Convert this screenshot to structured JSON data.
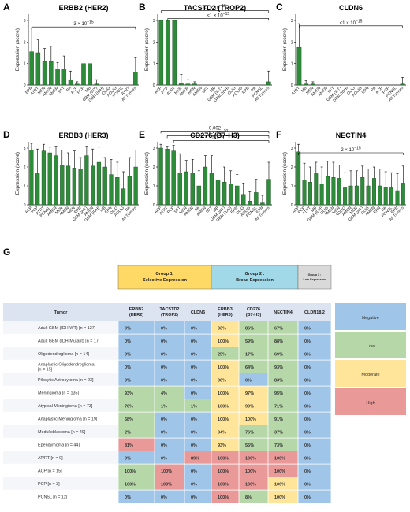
{
  "panel_labels": [
    "A",
    "B",
    "C",
    "D",
    "E",
    "F",
    "G"
  ],
  "colors": {
    "bar": "#2e8b3a",
    "negative": "#9fc5e8",
    "low": "#b6d7a8",
    "moderate": "#ffe599",
    "high": "#ea9999",
    "group1": "#ffd966",
    "group2": "#a2d9e8",
    "group3": "#d9d9d9",
    "header": "#dbe4f0"
  },
  "chart_data": [
    {
      "type": "bar",
      "panel": "A",
      "title": "ERBB2 (HER2)",
      "ylabel": "Expression (score)",
      "ylim": [
        0,
        3
      ],
      "yticks": [
        0,
        1,
        2,
        3
      ],
      "categories": [
        "EPN",
        "ATRT",
        "MEN",
        "AMEN",
        "AMEN",
        "SFT",
        "PA",
        "ACP",
        "PCP",
        "MB",
        "GBM (WT)",
        "GBM (IDH)",
        "OLIG",
        "AOLG",
        "PCNSL",
        "ATRT2",
        "All Tumors"
      ],
      "tick_labels": [
        "EPN",
        "ATRT",
        "MEN",
        "AMEN",
        "AMEN",
        "SFT",
        "PA",
        "ACP",
        "PCP",
        "MB",
        "GBM (WT)",
        "GBM (IDH)",
        "OLIG",
        "AOLIG",
        "PCNSL",
        "ATRT",
        "All Tumors"
      ],
      "values": [
        1.55,
        1.5,
        1.1,
        1.1,
        0.75,
        0.75,
        0.25,
        0.05,
        1.0,
        1.0,
        0.05,
        0,
        0,
        0,
        0,
        0,
        0.6
      ],
      "errors": [
        1.1,
        0.6,
        0.6,
        0.7,
        0.3,
        0.6,
        0.4,
        0.1,
        0,
        0,
        0.2,
        0,
        0,
        0,
        0,
        0,
        0.7
      ],
      "annotations": [
        {
          "text": "3 × 10",
          "exp": "−15",
          "from": 0,
          "to": 16,
          "y": 2.7
        }
      ]
    },
    {
      "type": "bar",
      "panel": "B",
      "title": "TACSTD2 (TROP2)",
      "ylabel": "Expression (score)",
      "ylim": [
        0,
        3
      ],
      "yticks": [
        0,
        1,
        2,
        3
      ],
      "categories": [
        "ACP",
        "PCP",
        "ATRT",
        "MEN",
        "AMEN",
        "MEN2",
        "MEN3",
        "SFT",
        "MB",
        "GBM (WT)",
        "GBM (IDH)",
        "OLIG",
        "AOLG",
        "EPN",
        "PA",
        "PCNSL",
        "All Tumors"
      ],
      "tick_labels": [
        "ACP",
        "PCP",
        "ATRT",
        "MEN",
        "AMEN",
        "MEN",
        "AMEN",
        "SFT",
        "MB",
        "GBM (WT)",
        "GBM (IDH)",
        "OLIG",
        "AOLIG",
        "EPN",
        "PA",
        "PCNSL",
        "All Tumors"
      ],
      "values": [
        3.0,
        3.0,
        3.0,
        0.1,
        0.05,
        0.05,
        0,
        0,
        0,
        0,
        0,
        0,
        0,
        0,
        0,
        0,
        0.15
      ],
      "errors": [
        0,
        0,
        0,
        0.4,
        0.2,
        0.1,
        0,
        0,
        0,
        0,
        0,
        0,
        0,
        0,
        0,
        0,
        0.5
      ],
      "annotations": [
        {
          "text": "<1 × 10",
          "exp": "−15",
          "from": 0,
          "to": 16,
          "y": 3.45
        },
        {
          "text": "<1 × 10",
          "exp": "−15",
          "from": 1,
          "to": 16,
          "y": 3.1
        }
      ]
    },
    {
      "type": "bar",
      "panel": "C",
      "title": "CLDN6",
      "ylabel": "Expression (score)",
      "ylim": [
        0,
        3
      ],
      "yticks": [
        0,
        1,
        2,
        3
      ],
      "categories": [
        "ATRT",
        "MB",
        "MEN",
        "AMEN",
        "AMEN2",
        "SFT",
        "GBM (WT)",
        "GBM (IDH)",
        "OLIG",
        "AOLG",
        "EPN",
        "PA",
        "ACP",
        "PCP",
        "PCNSL",
        "All Tumors"
      ],
      "tick_labels": [
        "ATRT",
        "MB",
        "MEN",
        "AMEN",
        "AMEN",
        "SFT",
        "GBM (WT)",
        "GBM (IDH)",
        "OLIG",
        "AOLIG",
        "EPN",
        "PA",
        "ACP",
        "PCP",
        "PCNSL",
        "All Tumors"
      ],
      "values": [
        1.75,
        0.05,
        0.05,
        0,
        0,
        0,
        0,
        0,
        0,
        0,
        0,
        0,
        0,
        0,
        0,
        0.05
      ],
      "errors": [
        1.1,
        0.15,
        0.1,
        0,
        0,
        0,
        0,
        0,
        0,
        0,
        0,
        0,
        0,
        0,
        0,
        0.3
      ],
      "annotations": [
        {
          "text": "<1 × 10",
          "exp": "−15",
          "from": 0,
          "to": 15,
          "y": 2.75
        }
      ]
    },
    {
      "type": "bar",
      "panel": "D",
      "title": "ERBB3 (HER3)",
      "ylabel": "Expression (score)",
      "ylim": [
        0,
        3
      ],
      "yticks": [
        0,
        1,
        2,
        3
      ],
      "categories": [
        "ACP",
        "PCP",
        "ATRT",
        "PCNSL",
        "AMEN",
        "MEN",
        "AMEN2",
        "MEN2",
        "EPN",
        "GBM (WT)",
        "AMEN3",
        "GBM (IDH)",
        "MB",
        "EPN2",
        "OLIG",
        "AOLG",
        "PA",
        "All Tumors"
      ],
      "tick_labels": [
        "ACP",
        "PCP",
        "ATRT",
        "PCNSL",
        "AMEN",
        "MEN",
        "AMEN",
        "MEN",
        "EPN",
        "GBM (WT)",
        "AMEN",
        "GBM (IDH)",
        "MB",
        "EPN",
        "OLIG",
        "AOLIG",
        "PA",
        "All Tumors"
      ],
      "values": [
        2.9,
        1.65,
        2.85,
        2.75,
        2.6,
        2.1,
        2.05,
        1.95,
        1.9,
        2.6,
        2.05,
        2.25,
        2.0,
        1.6,
        1.45,
        0.85,
        1.5,
        2.0
      ],
      "errors": [
        0.35,
        1.3,
        0.35,
        0.3,
        0.5,
        0.8,
        0.7,
        0.9,
        0.6,
        0.5,
        0.9,
        0.8,
        0.5,
        0.8,
        0.8,
        0.9,
        1.0,
        0.9
      ]
    },
    {
      "type": "bar",
      "panel": "E",
      "title": "CD276 (B7-H3)",
      "ylabel": "Expression (score)",
      "ylim": [
        0,
        3
      ],
      "yticks": [
        0,
        1,
        2,
        3
      ],
      "categories": [
        "ACP",
        "ATRT",
        "PCP",
        "SFT",
        "MEN",
        "AMEN",
        "PA",
        "AMEN2",
        "SFT2",
        "MB",
        "GBM (WT)",
        "GBM (IDH)",
        "EPN",
        "OLIG",
        "AOLG",
        "PCNSL",
        "EPN2",
        "All Tumors"
      ],
      "tick_labels": [
        "ACP",
        "ATRT",
        "PCP",
        "SFT",
        "MEN",
        "AMEN",
        "PA",
        "AMEN",
        "SFT",
        "MB",
        "GBM (WT)",
        "GBM (IDH)",
        "EPN",
        "OLIG",
        "AOLIG",
        "PCNSL",
        "EPN",
        "All Tumors"
      ],
      "values": [
        3.0,
        2.95,
        2.85,
        1.7,
        1.75,
        1.7,
        1.0,
        2.0,
        1.7,
        1.3,
        1.2,
        1.1,
        1.0,
        0.55,
        0.2,
        0.65,
        0.1,
        1.35
      ],
      "errors": [
        0.2,
        0.15,
        0.3,
        1.0,
        0.6,
        0.7,
        0.8,
        0.6,
        0.9,
        0.8,
        0.8,
        0.7,
        0.6,
        0.6,
        0.5,
        0.7,
        0.4,
        0.9
      ],
      "annotations": [
        {
          "text": "0.002",
          "exp": "",
          "from": 0,
          "to": 17,
          "y": 3.9
        },
        {
          "text": "1 × 10",
          "exp": "−10",
          "from": 1,
          "to": 17,
          "y": 3.65
        },
        {
          "text": "5 × 10",
          "exp": "−4",
          "from": 2,
          "to": 17,
          "y": 3.4
        }
      ]
    },
    {
      "type": "bar",
      "panel": "F",
      "title": "NECTIN4",
      "ylabel": "Expression (score)",
      "ylim": [
        0,
        3
      ],
      "yticks": [
        0,
        1,
        2,
        3
      ],
      "categories": [
        "ACP",
        "PCP",
        "ATRT",
        "MB",
        "GBM (IDH)",
        "OLIG",
        "AMEN",
        "MEN",
        "AOLG",
        "AMEN2",
        "MEN2",
        "GBM (WT)",
        "OLIG2",
        "AMEN3",
        "EPN",
        "PA",
        "PCNSL",
        "EPN2",
        "All Tumors"
      ],
      "tick_labels": [
        "ACP",
        "PCP",
        "ATRT",
        "MB",
        "GBM (IDH)",
        "OLIG",
        "AMEN",
        "MEN",
        "AOLIG",
        "AMEN",
        "MEN",
        "GBM (WT)",
        "OLIG",
        "AMEN",
        "EPN",
        "PA",
        "PCNSL",
        "EPN",
        "All Tumors"
      ],
      "values": [
        2.8,
        1.3,
        1.2,
        1.65,
        1.1,
        1.5,
        1.45,
        1.4,
        0.9,
        1.0,
        1.0,
        1.45,
        1.0,
        1.4,
        1.0,
        0.95,
        0.9,
        0.75,
        1.15
      ],
      "errors": [
        0.4,
        0.9,
        0.8,
        0.6,
        0.9,
        0.8,
        0.8,
        0.7,
        0.8,
        0.8,
        0.8,
        0.6,
        0.9,
        0.6,
        0.9,
        0.8,
        0.8,
        0.9,
        0.9
      ],
      "annotations": [
        {
          "text": "2 × 10",
          "exp": "−15",
          "from": 0,
          "to": 18,
          "y": 2.75
        }
      ]
    }
  ],
  "table": {
    "groups": [
      {
        "line1": "Group 1:",
        "line2": "Selective Expression",
        "color": "#ffd966"
      },
      {
        "line1": "Group 2 :",
        "line2": "Broad Expression",
        "color": "#a2d9e8"
      },
      {
        "line1": "Group 3 :",
        "line2": "Low Expression",
        "color": "#d9d9d9"
      }
    ],
    "headers": [
      {
        "l1": "Tumor",
        "l2": ""
      },
      {
        "l1": "ERBB2",
        "l2": "(HER2)"
      },
      {
        "l1": "TACSTD2",
        "l2": "(TROP2)"
      },
      {
        "l1": "CLDN6",
        "l2": ""
      },
      {
        "l1": "ERBB3",
        "l2": "(HER3)"
      },
      {
        "l1": "CD276",
        "l2": "(B7-H3)"
      },
      {
        "l1": "NECTIN4",
        "l2": ""
      },
      {
        "l1": "CLDN18.2",
        "l2": ""
      }
    ],
    "rows": [
      {
        "label": [
          "Adult GBM (IDH-WT) [n = 127]"
        ],
        "cells": [
          "0%",
          "0%",
          "0%",
          "93%",
          "86%",
          "67%",
          "0%"
        ],
        "levels": [
          "n",
          "n",
          "n",
          "m",
          "l",
          "l",
          "n"
        ]
      },
      {
        "label": [
          "Adult GBM (IDH-Mutant) [n = 17]"
        ],
        "cells": [
          "0%",
          "0%",
          "0%",
          "100%",
          "59%",
          "88%",
          "0%"
        ],
        "levels": [
          "n",
          "n",
          "n",
          "m",
          "l",
          "l",
          "n"
        ]
      },
      {
        "label": [
          "Oligodendroglioma [n = 14]"
        ],
        "cells": [
          "0%",
          "0%",
          "0%",
          "25%",
          "17%",
          "69%",
          "0%"
        ],
        "levels": [
          "n",
          "n",
          "n",
          "l",
          "l",
          "l",
          "n"
        ]
      },
      {
        "label": [
          "Anaplastic Oligodendroglioma",
          "[n = 15]"
        ],
        "cells": [
          "0%",
          "0%",
          "0%",
          "100%",
          "64%",
          "93%",
          "0%"
        ],
        "levels": [
          "n",
          "n",
          "n",
          "m",
          "l",
          "l",
          "n"
        ]
      },
      {
        "label": [
          "Pilocytic Astrocytoma [n = 23]"
        ],
        "cells": [
          "0%",
          "0%",
          "0%",
          "96%",
          "0%",
          "83%",
          "0%"
        ],
        "levels": [
          "n",
          "n",
          "n",
          "m",
          "n",
          "l",
          "n"
        ]
      },
      {
        "label": [
          "Meningioma [n = 135]"
        ],
        "cells": [
          "93%",
          "4%",
          "0%",
          "100%",
          "97%",
          "95%",
          "0%"
        ],
        "levels": [
          "l",
          "l",
          "n",
          "m",
          "m",
          "l",
          "n"
        ]
      },
      {
        "label": [
          "Atypical Meningioma [n = 73]"
        ],
        "cells": [
          "70%",
          "1%",
          "1%",
          "100%",
          "99%",
          "71%",
          "0%"
        ],
        "levels": [
          "l",
          "l",
          "l",
          "m",
          "m",
          "l",
          "n"
        ]
      },
      {
        "label": [
          "Anaplastic Meningioma [n = 19]"
        ],
        "cells": [
          "68%",
          "0%",
          "0%",
          "100%",
          "100%",
          "91%",
          "0%"
        ],
        "levels": [
          "l",
          "n",
          "n",
          "m",
          "m",
          "l",
          "n"
        ]
      },
      {
        "label": [
          "Medulloblastoma [n = 49]"
        ],
        "cells": [
          "2%",
          "0%",
          "0%",
          "94%",
          "76%",
          "37%",
          "0%"
        ],
        "levels": [
          "l",
          "n",
          "n",
          "m",
          "l",
          "l",
          "n"
        ]
      },
      {
        "label": [
          "Ependymoma [n = 44]"
        ],
        "cells": [
          "81%",
          "0%",
          "0%",
          "93%",
          "55%",
          "73%",
          "0%"
        ],
        "levels": [
          "h",
          "n",
          "n",
          "m",
          "l",
          "l",
          "n"
        ]
      },
      {
        "label": [
          "AT/RT [n = 9]"
        ],
        "cells": [
          "0%",
          "0%",
          "89%",
          "100%",
          "100%",
          "100%",
          "0%"
        ],
        "levels": [
          "n",
          "n",
          "h",
          "h",
          "h",
          "h",
          "n"
        ]
      },
      {
        "label": [
          "ACP [n = 15]"
        ],
        "cells": [
          "100%",
          "100%",
          "0%",
          "100%",
          "100%",
          "100%",
          "0%"
        ],
        "levels": [
          "l",
          "h",
          "n",
          "h",
          "h",
          "h",
          "n"
        ]
      },
      {
        "label": [
          "PCP [n = 3]"
        ],
        "cells": [
          "100%",
          "100%",
          "0%",
          "100%",
          "100%",
          "100%",
          "0%"
        ],
        "levels": [
          "l",
          "h",
          "n",
          "h",
          "h",
          "m",
          "n"
        ]
      },
      {
        "label": [
          "PCNSL [n = 12]"
        ],
        "cells": [
          "0%",
          "0%",
          "0%",
          "100%",
          "8%",
          "100%",
          "0%"
        ],
        "levels": [
          "n",
          "n",
          "n",
          "h",
          "l",
          "m",
          "n"
        ]
      }
    ],
    "legend": [
      {
        "label": "Negative",
        "level": "n"
      },
      {
        "label": "Low",
        "level": "l"
      },
      {
        "label": "Moderate",
        "level": "m"
      },
      {
        "label": "High",
        "level": "h"
      }
    ]
  }
}
